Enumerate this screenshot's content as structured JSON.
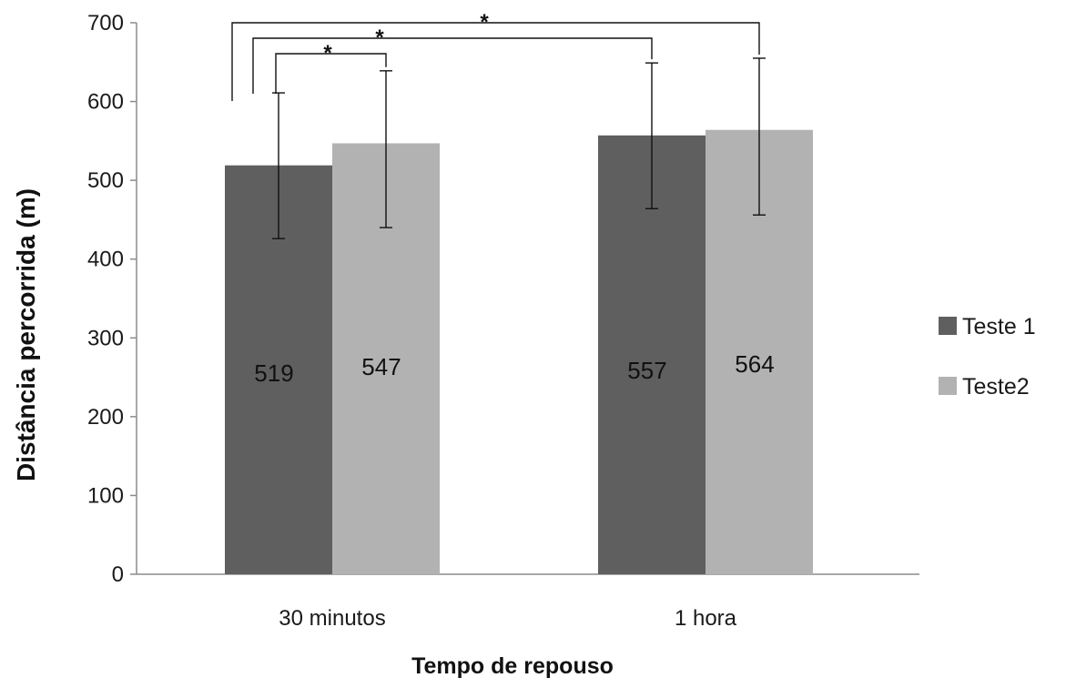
{
  "chart_data": {
    "type": "bar",
    "xlabel": "Tempo de repouso",
    "ylabel": "Distância percorrida (m)",
    "categories": [
      "30 minutos",
      "1 hora"
    ],
    "ylim": [
      0,
      700
    ],
    "yticks": [
      0,
      100,
      200,
      300,
      400,
      500,
      600,
      700
    ],
    "grid": false,
    "legend_position": "right",
    "series": [
      {
        "name": "Teste 1",
        "color": "#5f5f5f",
        "values": [
          519,
          557
        ],
        "error_low": [
          426,
          464
        ],
        "error_high": [
          611,
          649
        ],
        "data_labels": [
          "519",
          "557"
        ]
      },
      {
        "name": "Teste2",
        "color": "#b2b2b2",
        "values": [
          547,
          564
        ],
        "error_low": [
          440,
          456
        ],
        "error_high": [
          639,
          655
        ],
        "data_labels": [
          "547",
          "564"
        ]
      }
    ],
    "significance": [
      {
        "label": "*",
        "from": [
          0,
          0
        ],
        "to": [
          0,
          1
        ]
      },
      {
        "label": "*",
        "from": [
          0,
          0
        ],
        "to": [
          1,
          0
        ]
      },
      {
        "label": "*",
        "from": [
          0,
          0
        ],
        "to": [
          1,
          1
        ]
      }
    ]
  }
}
